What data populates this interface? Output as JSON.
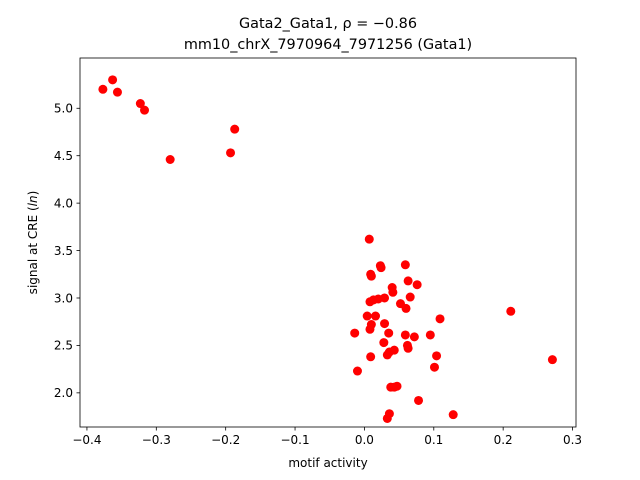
{
  "chart_data": {
    "type": "scatter",
    "title_line1": "Gata2_Gata1, ρ = −0.86",
    "title_line2": "mm10_chrX_7970964_7971256 (Gata1)",
    "xlabel": "motif activity",
    "ylabel": "signal at CRE (ln)",
    "xlim": [
      -0.41,
      0.305
    ],
    "ylim": [
      1.64,
      5.53
    ],
    "xticks": [
      -0.4,
      -0.3,
      -0.2,
      -0.1,
      0.0,
      0.1,
      0.2,
      0.3
    ],
    "xtick_labels": [
      "−0.4",
      "−0.3",
      "−0.2",
      "−0.1",
      "0.0",
      "0.1",
      "0.2",
      "0.3"
    ],
    "yticks": [
      2.0,
      2.5,
      3.0,
      3.5,
      4.0,
      4.5,
      5.0
    ],
    "ytick_labels": [
      "2.0",
      "2.5",
      "3.0",
      "3.5",
      "4.0",
      "4.5",
      "5.0"
    ],
    "grid": false,
    "marker_color": "#ff0000",
    "points": [
      {
        "x": -0.377,
        "y": 5.2
      },
      {
        "x": -0.363,
        "y": 5.3
      },
      {
        "x": -0.356,
        "y": 5.17
      },
      {
        "x": -0.323,
        "y": 5.05
      },
      {
        "x": -0.317,
        "y": 4.98
      },
      {
        "x": -0.28,
        "y": 4.46
      },
      {
        "x": -0.193,
        "y": 4.53
      },
      {
        "x": -0.187,
        "y": 4.78
      },
      {
        "x": 0.007,
        "y": 3.62
      },
      {
        "x": 0.009,
        "y": 3.25
      },
      {
        "x": 0.01,
        "y": 3.23
      },
      {
        "x": 0.023,
        "y": 3.34
      },
      {
        "x": 0.024,
        "y": 3.32
      },
      {
        "x": 0.059,
        "y": 3.35
      },
      {
        "x": 0.063,
        "y": 3.18
      },
      {
        "x": 0.076,
        "y": 3.14
      },
      {
        "x": 0.04,
        "y": 3.11
      },
      {
        "x": 0.041,
        "y": 3.06
      },
      {
        "x": 0.066,
        "y": 3.01
      },
      {
        "x": 0.029,
        "y": 3.0
      },
      {
        "x": 0.02,
        "y": 2.99
      },
      {
        "x": 0.013,
        "y": 2.98
      },
      {
        "x": 0.008,
        "y": 2.96
      },
      {
        "x": 0.052,
        "y": 2.94
      },
      {
        "x": 0.06,
        "y": 2.89
      },
      {
        "x": 0.211,
        "y": 2.86
      },
      {
        "x": 0.004,
        "y": 2.81
      },
      {
        "x": 0.016,
        "y": 2.81
      },
      {
        "x": 0.109,
        "y": 2.78
      },
      {
        "x": 0.029,
        "y": 2.73
      },
      {
        "x": 0.01,
        "y": 2.72
      },
      {
        "x": 0.008,
        "y": 2.67
      },
      {
        "x": -0.014,
        "y": 2.63
      },
      {
        "x": 0.035,
        "y": 2.63
      },
      {
        "x": 0.059,
        "y": 2.61
      },
      {
        "x": 0.095,
        "y": 2.61
      },
      {
        "x": 0.072,
        "y": 2.59
      },
      {
        "x": 0.028,
        "y": 2.53
      },
      {
        "x": 0.062,
        "y": 2.5
      },
      {
        "x": 0.063,
        "y": 2.47
      },
      {
        "x": 0.043,
        "y": 2.45
      },
      {
        "x": 0.036,
        "y": 2.43
      },
      {
        "x": 0.033,
        "y": 2.4
      },
      {
        "x": 0.104,
        "y": 2.39
      },
      {
        "x": 0.009,
        "y": 2.38
      },
      {
        "x": 0.271,
        "y": 2.35
      },
      {
        "x": 0.101,
        "y": 2.27
      },
      {
        "x": -0.01,
        "y": 2.23
      },
      {
        "x": 0.047,
        "y": 2.07
      },
      {
        "x": 0.038,
        "y": 2.06
      },
      {
        "x": 0.043,
        "y": 2.06
      },
      {
        "x": 0.078,
        "y": 1.92
      },
      {
        "x": 0.036,
        "y": 1.78
      },
      {
        "x": 0.033,
        "y": 1.73
      },
      {
        "x": 0.128,
        "y": 1.77
      }
    ]
  }
}
